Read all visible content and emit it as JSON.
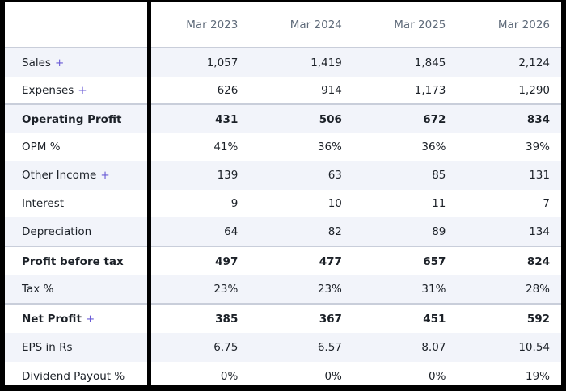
{
  "table": {
    "columns": [
      "Mar 2023",
      "Mar 2024",
      "Mar 2025",
      "Mar 2026"
    ],
    "rows": [
      {
        "label": "Sales",
        "expand": "+",
        "values": [
          "1,057",
          "1,419",
          "1,845",
          "2,124"
        ]
      },
      {
        "label": "Expenses",
        "expand": "+",
        "values": [
          "626",
          "914",
          "1,173",
          "1,290"
        ]
      },
      {
        "label": "Operating Profit",
        "values": [
          "431",
          "506",
          "672",
          "834"
        ]
      },
      {
        "label": "OPM %",
        "values": [
          "41%",
          "36%",
          "36%",
          "39%"
        ]
      },
      {
        "label": "Other Income",
        "expand": "+",
        "values": [
          "139",
          "63",
          "85",
          "131"
        ]
      },
      {
        "label": "Interest",
        "values": [
          "9",
          "10",
          "11",
          "7"
        ]
      },
      {
        "label": "Depreciation",
        "values": [
          "64",
          "82",
          "89",
          "134"
        ]
      },
      {
        "label": "Profit before tax",
        "values": [
          "497",
          "477",
          "657",
          "824"
        ]
      },
      {
        "label": "Tax %",
        "values": [
          "23%",
          "23%",
          "31%",
          "28%"
        ]
      },
      {
        "label": "Net Profit",
        "expand": "+",
        "values": [
          "385",
          "367",
          "451",
          "592"
        ]
      },
      {
        "label": "EPS in Rs",
        "values": [
          "6.75",
          "6.57",
          "8.07",
          "10.54"
        ]
      },
      {
        "label": "Dividend Payout %",
        "values": [
          "0%",
          "0%",
          "0%",
          "19%"
        ]
      }
    ]
  }
}
